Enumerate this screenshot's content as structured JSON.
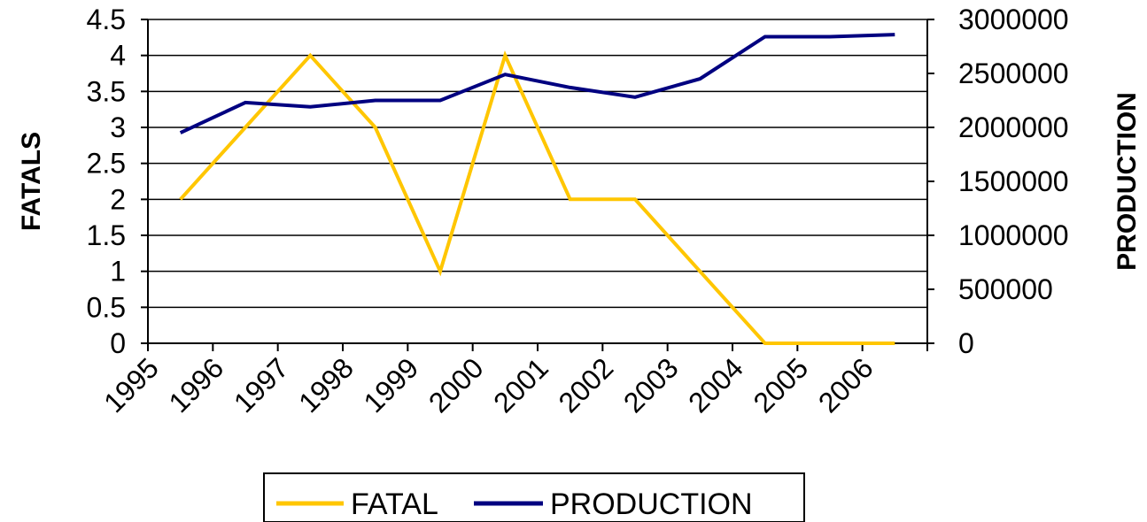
{
  "chart_data": {
    "type": "line",
    "categories": [
      "1995",
      "1996",
      "1997",
      "1998",
      "1999",
      "2000",
      "2001",
      "2002",
      "2003",
      "2004",
      "2005",
      "2006"
    ],
    "series": [
      {
        "name": "FATAL",
        "axis": "left",
        "color": "#FFC600",
        "values": [
          2,
          3,
          4,
          3,
          1,
          4,
          2,
          2,
          1,
          0,
          0,
          0
        ]
      },
      {
        "name": "PRODUCTION",
        "axis": "right",
        "color": "#000080",
        "values": [
          1950000,
          2230000,
          2190000,
          2250000,
          2250000,
          2490000,
          2370000,
          2280000,
          2450000,
          2840000,
          2840000,
          2860000
        ]
      }
    ],
    "y_left": {
      "label": "FATALS",
      "min": 0,
      "max": 4.5,
      "step": 0.5,
      "ticks": [
        "0",
        "0.5",
        "1",
        "1.5",
        "2",
        "2.5",
        "3",
        "3.5",
        "4",
        "4.5"
      ]
    },
    "y_right": {
      "label": "PRODUCTION",
      "min": 0,
      "max": 3000000,
      "step": 500000,
      "ticks": [
        "0",
        "500000",
        "1000000",
        "1500000",
        "2000000",
        "2500000",
        "3000000"
      ]
    },
    "grid": true,
    "legend_position": "bottom"
  }
}
